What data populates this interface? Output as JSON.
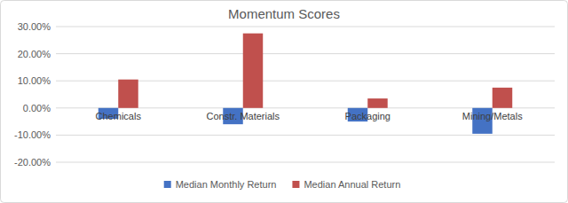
{
  "chart_data": {
    "type": "bar",
    "title": "Momentum Scores",
    "categories": [
      "Chemicals",
      "Constr. Materials",
      "Packaging",
      "Mining/Metals"
    ],
    "series": [
      {
        "name": "Median Monthly Return",
        "color": "#4472c4",
        "values": [
          -4,
          -6,
          -5,
          -9.5
        ]
      },
      {
        "name": "Median Annual Return",
        "color": "#c0504d",
        "values": [
          10.5,
          27.5,
          3.5,
          7.5
        ]
      }
    ],
    "ylim": [
      -20,
      30
    ],
    "yticks": [
      {
        "value": -20,
        "label": "-20.00%"
      },
      {
        "value": -10,
        "label": "-10.00%"
      },
      {
        "value": 0,
        "label": "0.00%"
      },
      {
        "value": 10,
        "label": "10.00%"
      },
      {
        "value": 20,
        "label": "20.00%"
      },
      {
        "value": 30,
        "label": "30.00%"
      }
    ],
    "grid": true,
    "legend": "bottom"
  }
}
